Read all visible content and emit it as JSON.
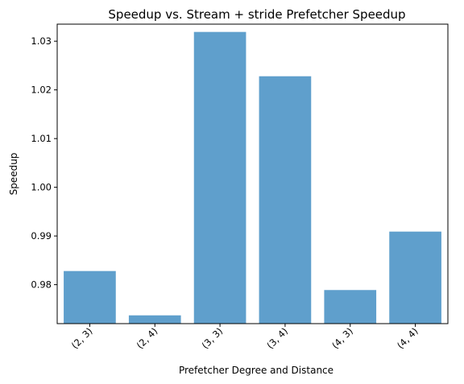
{
  "chart_data": {
    "type": "bar",
    "title": "Speedup vs. Stream + stride Prefetcher Speedup",
    "xlabel": "Prefetcher Degree and Distance",
    "ylabel": "Speedup",
    "categories": [
      "(2, 3)",
      "(2, 4)",
      "(3, 3)",
      "(3, 4)",
      "(4, 3)",
      "(4, 4)"
    ],
    "values": [
      0.9828,
      0.9737,
      1.0319,
      1.0228,
      0.9789,
      0.9909
    ],
    "ylim": [
      0.972,
      1.0335
    ],
    "yticks": [
      "0.98",
      "0.99",
      "1.00",
      "1.01",
      "1.02",
      "1.03"
    ],
    "bar_color": "#5f9fcc",
    "grid": false,
    "legend": "none"
  }
}
